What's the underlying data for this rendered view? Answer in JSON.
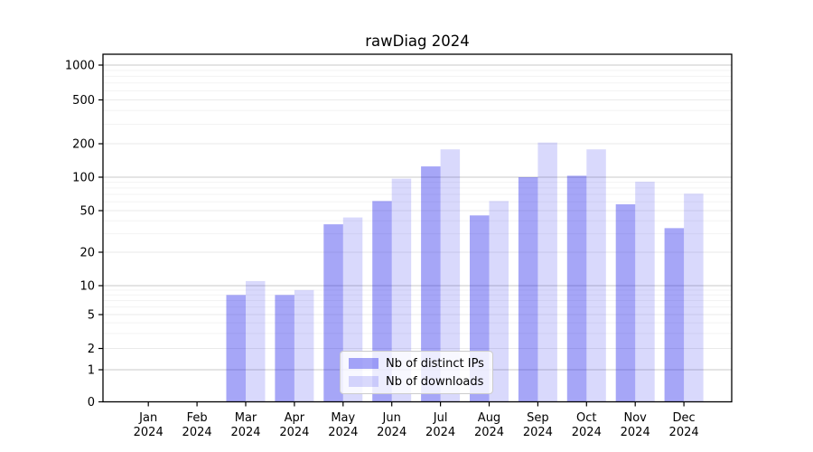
{
  "chart_data": {
    "type": "bar",
    "title": "rawDiag 2024",
    "categories": [
      "Jan",
      "Feb",
      "Mar",
      "Apr",
      "May",
      "Jun",
      "Jul",
      "Aug",
      "Sep",
      "Oct",
      "Nov",
      "Dec"
    ],
    "category_year": "2024",
    "series": [
      {
        "name": "Nb of distinct IPs",
        "color": "rgba(20,20,235,0.38)",
        "legend_color_hex": "#a8a8f8",
        "values": [
          0,
          0,
          8,
          8,
          37,
          61,
          125,
          45,
          100,
          103,
          57,
          34
        ]
      },
      {
        "name": "Nb of downloads",
        "color": "rgba(20,20,235,0.16)",
        "legend_color_hex": "#dbdbfc",
        "values": [
          0,
          0,
          11,
          9,
          43,
          97,
          178,
          61,
          205,
          178,
          91,
          71
        ]
      }
    ],
    "y_ticks": [
      0,
      1,
      2,
      5,
      10,
      20,
      50,
      100,
      200,
      500,
      1000
    ],
    "ylim": [
      0,
      1300
    ],
    "xlabel": "",
    "ylabel": "",
    "grid": true,
    "scale": "log-like with linear segment near zero",
    "legend_position": "lower-center-inside",
    "decade_gridline_color": "#c8c8c8",
    "major_gridline_color": "#eaeaea",
    "minor_gridline_color": "#f3f3f3",
    "axis_color": "#000000"
  }
}
